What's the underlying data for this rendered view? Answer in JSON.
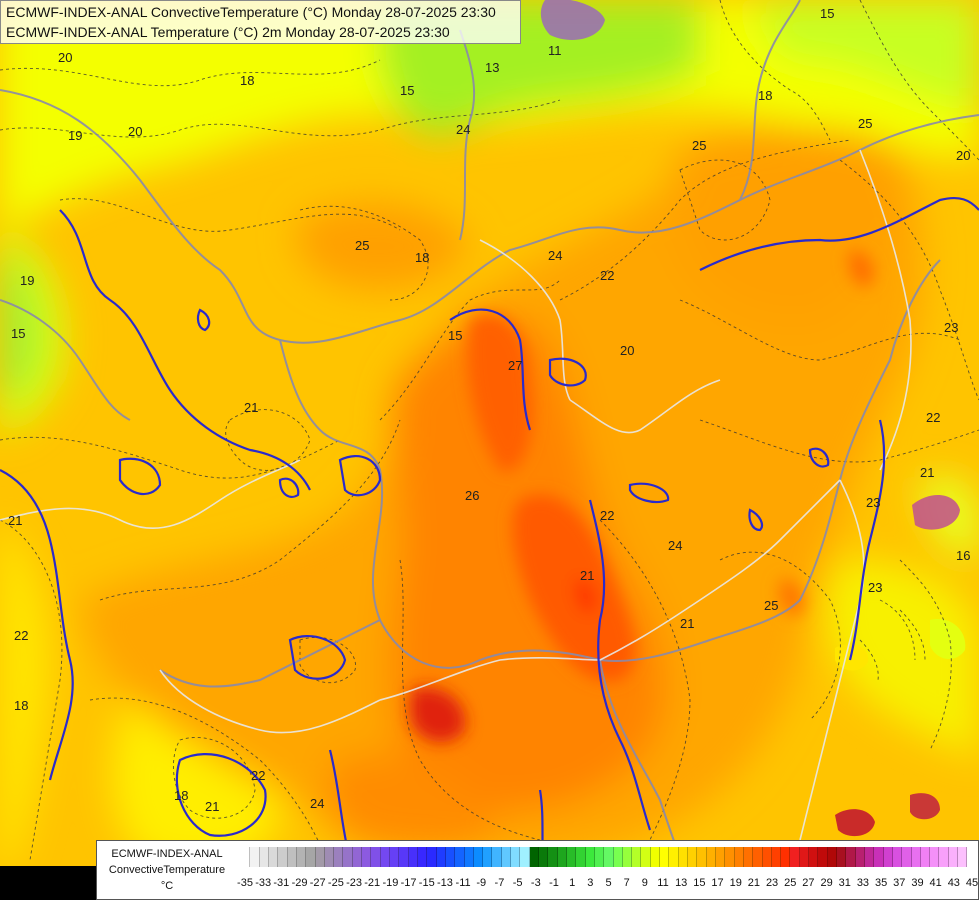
{
  "header": {
    "line1": "ECMWF-INDEX-ANAL ConvectiveTemperature (°C) Monday 28-07-2025 23:30",
    "line2": "ECMWF-INDEX-ANAL Temperature (°C) 2m Monday 28-07-2025 23:30"
  },
  "legend": {
    "label_line1": "ECMWF-INDEX-ANAL",
    "label_line2": "ConvectiveTemperature",
    "label_line3": "°C",
    "ticks": [
      "-35",
      "-33",
      "-31",
      "-29",
      "-27",
      "-25",
      "-23",
      "-21",
      "-19",
      "-17",
      "-15",
      "-13",
      "-11",
      "-9",
      "-7",
      "-5",
      "-3",
      "-1",
      "1",
      "3",
      "5",
      "7",
      "9",
      "11",
      "13",
      "15",
      "17",
      "19",
      "21",
      "23",
      "25",
      "27",
      "29",
      "31",
      "33",
      "35",
      "37",
      "39",
      "41",
      "43",
      "45"
    ],
    "colors": [
      "#ffffff",
      "#f2f2f2",
      "#e6e6e6",
      "#d9d9d9",
      "#cccccc",
      "#bfbfbf",
      "#b3b3b3",
      "#a6a6a6",
      "#a39aa8",
      "#9f8cb3",
      "#9b80be",
      "#9673c9",
      "#9266d4",
      "#8c5ae0",
      "#8050e8",
      "#7448f0",
      "#6640f5",
      "#5838f8",
      "#4830fb",
      "#3828ff",
      "#2a2aff",
      "#1f3cff",
      "#1850ff",
      "#1464ff",
      "#1078ff",
      "#0c8cff",
      "#20a0ff",
      "#40b4ff",
      "#60c8ff",
      "#80dcff",
      "#a0f0ff",
      "#006400",
      "#0a7a0a",
      "#149014",
      "#1ea61e",
      "#28bc28",
      "#32d232",
      "#3ce83c",
      "#50f050",
      "#64f864",
      "#78ff50",
      "#96ff3c",
      "#b4ff28",
      "#d2ff14",
      "#f0ff00",
      "#ffff00",
      "#fff000",
      "#ffe000",
      "#ffd000",
      "#ffc000",
      "#ffb000",
      "#ffa000",
      "#ff9000",
      "#ff8000",
      "#ff7000",
      "#ff6000",
      "#ff5000",
      "#ff4000",
      "#ff3000",
      "#f02020",
      "#e01818",
      "#d01010",
      "#c00a0a",
      "#b00808",
      "#a81020",
      "#b01848",
      "#b82070",
      "#c02898",
      "#c830b8",
      "#d040d0",
      "#d850e0",
      "#e060e8",
      "#e870f0",
      "#f080f4",
      "#f490f8",
      "#f8a0fa",
      "#fab0fc",
      "#fcc0fd"
    ],
    "tick_min": -35,
    "tick_max": 45
  },
  "contour_labels": [
    {
      "text": "20"
    },
    {
      "text": "19"
    },
    {
      "text": "20"
    },
    {
      "text": "18"
    },
    {
      "text": "13"
    },
    {
      "text": "15"
    },
    {
      "text": "11"
    },
    {
      "text": "15"
    },
    {
      "text": "18"
    },
    {
      "text": "25"
    },
    {
      "text": "25"
    },
    {
      "text": "25"
    },
    {
      "text": "24"
    },
    {
      "text": "22"
    },
    {
      "text": "18"
    },
    {
      "text": "27"
    },
    {
      "text": "21"
    },
    {
      "text": "26"
    },
    {
      "text": "24"
    },
    {
      "text": "25"
    },
    {
      "text": "21"
    },
    {
      "text": "22"
    },
    {
      "text": "23"
    },
    {
      "text": "22"
    },
    {
      "text": "21"
    },
    {
      "text": "23"
    },
    {
      "text": "16"
    },
    {
      "text": "20"
    },
    {
      "text": "22"
    },
    {
      "text": "18"
    },
    {
      "text": "21"
    },
    {
      "text": "22"
    },
    {
      "text": "24"
    },
    {
      "text": "18"
    },
    {
      "text": "24"
    },
    {
      "text": "15"
    },
    {
      "text": "21"
    },
    {
      "text": "23"
    },
    {
      "text": "15"
    },
    {
      "text": "19"
    },
    {
      "text": "21"
    },
    {
      "text": "20"
    }
  ]
}
